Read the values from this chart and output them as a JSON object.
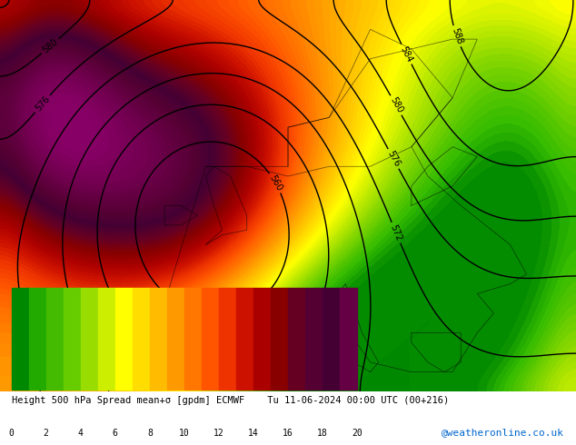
{
  "title": "Height 500 hPa Spread mean+σ [gpdm] ECMWF    Tu 11-06-2024 00:00 UTC (00+216)",
  "colorbar_label": "",
  "colorbar_ticks": [
    0,
    2,
    4,
    6,
    8,
    10,
    12,
    14,
    16,
    18,
    20
  ],
  "colorbar_colors": [
    "#00aa00",
    "#33bb00",
    "#66cc00",
    "#99dd00",
    "#ccee00",
    "#ffff00",
    "#ffdd00",
    "#ffbb00",
    "#ff9900",
    "#ff7700",
    "#ff5500",
    "#ee3300",
    "#cc1100",
    "#aa0000",
    "#880000",
    "#660000",
    "#440000",
    "#220011",
    "#110022",
    "#660033"
  ],
  "background_color": "#ffffff",
  "map_background": "#f0f0f0",
  "watermark": "@weatheronline.co.uk",
  "watermark_color": "#0066cc",
  "fig_width": 6.34,
  "fig_height": 4.9,
  "dpi": 100
}
